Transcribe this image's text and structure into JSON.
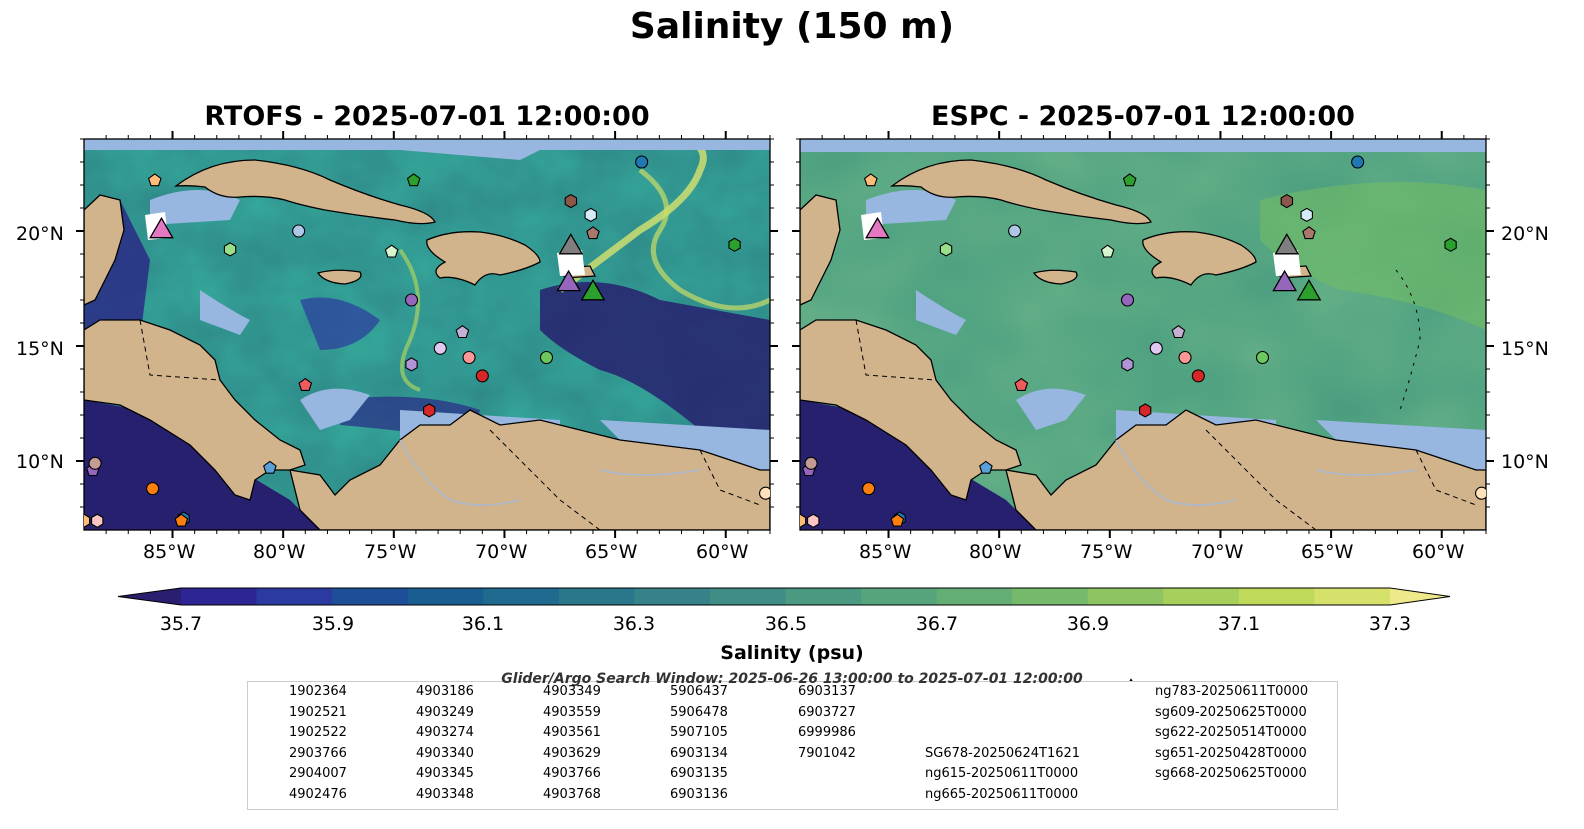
{
  "figure": {
    "title": "Salinity (150 m)",
    "panels": [
      {
        "title": "RTOFS - 2025-07-01 12:00:00"
      },
      {
        "title": "ESPC - 2025-07-01 12:00:00"
      }
    ],
    "lat_labels": [
      "20°N",
      "15°N",
      "10°N"
    ],
    "lon_labels": [
      "85°W",
      "80°W",
      "75°W",
      "70°W",
      "65°W",
      "60°W"
    ],
    "colorbar": {
      "label": "Salinity (psu)",
      "tick_labels": [
        "35.7",
        "35.9",
        "36.1",
        "36.3",
        "36.5",
        "36.7",
        "36.9",
        "37.1",
        "37.3"
      ],
      "min": 35.6,
      "max": 37.4,
      "colors": [
        "#2a1e6e",
        "#2e2595",
        "#2b3aa0",
        "#1e4e98",
        "#1a5e91",
        "#1f6a8e",
        "#2a768b",
        "#358288",
        "#3f8d84",
        "#4a9980",
        "#56a47b",
        "#63ae74",
        "#75b96c",
        "#8ec462",
        "#a6cf5b",
        "#bfd95a",
        "#d6e16b",
        "#eee98a"
      ],
      "extend": "both"
    },
    "search_window": "Glider/Argo Search Window: 2025-06-26 13:00:00 to 2025-07-01 12:00:00"
  },
  "map": {
    "extent_lon": [
      -89,
      -58
    ],
    "extent_lat": [
      7,
      24
    ]
  },
  "floats": [
    {
      "id": "1902364",
      "marker": "circle",
      "color": "#1f77b4",
      "lon": -63.8,
      "lat": 23.0
    },
    {
      "id": "1902521",
      "marker": "hexagon",
      "color": "#1f77b4",
      "lon": -84.5,
      "lat": 7.5
    },
    {
      "id": "1902522",
      "marker": "pentagon",
      "color": "#5aa0d8",
      "lon": -80.6,
      "lat": 9.7
    },
    {
      "id": "2903766",
      "marker": "circle",
      "color": "#aec7e8",
      "lon": -79.3,
      "lat": 20.0
    },
    {
      "id": "2904007",
      "marker": "hexagon",
      "color": "#d4ecf8",
      "lon": -66.1,
      "lat": 20.7
    },
    {
      "id": "4902476",
      "marker": "pentagon",
      "color": "#ff7f0e",
      "lon": -84.6,
      "lat": 7.4
    },
    {
      "id": "4903186",
      "marker": "circle",
      "color": "#ff7f0e",
      "lon": -85.9,
      "lat": 8.8
    },
    {
      "id": "4903249",
      "marker": "hexagon",
      "color": "#ffbb78",
      "lon": -89.0,
      "lat": 7.4
    },
    {
      "id": "4903274",
      "marker": "pentagon",
      "color": "#ffbb78",
      "lon": -85.8,
      "lat": 22.2
    },
    {
      "id": "4903340",
      "marker": "circle",
      "color": "#ffe1bb",
      "lon": -58.2,
      "lat": 8.6
    },
    {
      "id": "4903345",
      "marker": "hexagon",
      "color": "#2ca02c",
      "lon": -59.6,
      "lat": 19.4
    },
    {
      "id": "4903348",
      "marker": "pentagon",
      "color": "#2ca02c",
      "lon": -74.1,
      "lat": 22.2
    },
    {
      "id": "4903349",
      "marker": "circle",
      "color": "#6cc75f",
      "lon": -68.1,
      "lat": 14.5
    },
    {
      "id": "4903559",
      "marker": "hexagon",
      "color": "#98df8a",
      "lon": -82.4,
      "lat": 19.2
    },
    {
      "id": "4903561",
      "marker": "pentagon",
      "color": "#d6f5cd",
      "lon": -75.1,
      "lat": 19.1
    },
    {
      "id": "4903629",
      "marker": "circle",
      "color": "#d62728",
      "lon": -71.0,
      "lat": 13.7
    },
    {
      "id": "4903766",
      "marker": "hexagon",
      "color": "#d62728",
      "lon": -73.4,
      "lat": 12.2
    },
    {
      "id": "4903768",
      "marker": "pentagon",
      "color": "#ef5b5c",
      "lon": -79.0,
      "lat": 13.3
    },
    {
      "id": "5906437",
      "marker": "circle",
      "color": "#ff9896",
      "lon": -71.6,
      "lat": 14.5
    },
    {
      "id": "5906478",
      "marker": "hexagon",
      "color": "#ffc5c4",
      "lon": -88.4,
      "lat": 7.4
    },
    {
      "id": "5907105",
      "marker": "pentagon",
      "color": "#9467bd",
      "lon": -88.6,
      "lat": 9.6
    },
    {
      "id": "6903134",
      "marker": "circle",
      "color": "#9467bd",
      "lon": -74.2,
      "lat": 17.0
    },
    {
      "id": "6903135",
      "marker": "hexagon",
      "color": "#b194d6",
      "lon": -74.2,
      "lat": 14.2
    },
    {
      "id": "6903136",
      "marker": "pentagon",
      "color": "#c5b0d5",
      "lon": -71.9,
      "lat": 15.6
    },
    {
      "id": "6903137",
      "marker": "circle",
      "color": "#e0c8f0",
      "lon": -72.9,
      "lat": 14.9
    },
    {
      "id": "6903727",
      "marker": "hexagon",
      "color": "#8c564b",
      "lon": -67.0,
      "lat": 21.3
    },
    {
      "id": "6999986",
      "marker": "pentagon",
      "color": "#a8786d",
      "lon": -66.0,
      "lat": 19.9
    },
    {
      "id": "7901042",
      "marker": "circle",
      "color": "#c49c94",
      "lon": -88.5,
      "lat": 9.9
    }
  ],
  "gliders": [
    {
      "id": "SG678-20250624T1621",
      "color": "#1f77b4",
      "lon": null,
      "lat": null
    },
    {
      "id": "ng615-20250611T0000",
      "color": "#ff7f0e",
      "lon": null,
      "lat": null
    },
    {
      "id": "ng665-20250611T0000",
      "color": "#2ca02c",
      "lon": -66.0,
      "lat": 17.4
    },
    {
      "id": "ng783-20250611T0000",
      "color": "#d62728",
      "lon": null,
      "lat": null
    },
    {
      "id": "sg609-20250625T0000",
      "color": "#9467bd",
      "lon": -67.1,
      "lat": 17.8
    },
    {
      "id": "sg622-20250514T0000",
      "color": "#8c564b",
      "lon": null,
      "lat": null
    },
    {
      "id": "sg651-20250428T0000",
      "color": "#e377c2",
      "lon": -85.5,
      "lat": 20.1
    },
    {
      "id": "sg668-20250625T0000",
      "color": "#7f7f7f",
      "lon": -67.0,
      "lat": 19.4
    }
  ]
}
